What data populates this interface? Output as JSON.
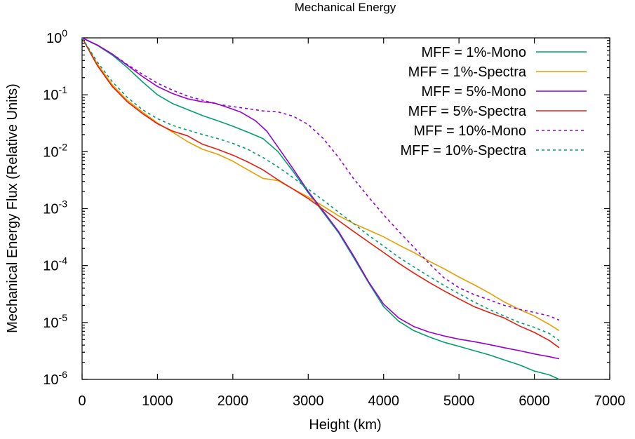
{
  "chart_data": {
    "type": "line",
    "title": "Mechanical Energy",
    "xlabel": "Height (km)",
    "ylabel": "Mechanical Energy Flux  (Relative Units)",
    "xlim": [
      0,
      7000
    ],
    "ylim": [
      1e-06,
      1
    ],
    "yscale": "log",
    "grid": false,
    "legend_position": "top-right",
    "x_ticks": [
      0,
      1000,
      2000,
      3000,
      4000,
      5000,
      6000,
      7000
    ],
    "x_tick_labels": [
      "0",
      "1000",
      "2000",
      "3000",
      "4000",
      "5000",
      "6000",
      "7000"
    ],
    "y_ticks": [
      {
        "value": 1,
        "base": "10",
        "exp": "0"
      },
      {
        "value": 0.1,
        "base": "10",
        "exp": "-1"
      },
      {
        "value": 0.01,
        "base": "10",
        "exp": "-2"
      },
      {
        "value": 0.001,
        "base": "10",
        "exp": "-3"
      },
      {
        "value": 0.0001,
        "base": "10",
        "exp": "-4"
      },
      {
        "value": 1e-05,
        "base": "10",
        "exp": "-5"
      },
      {
        "value": 1e-06,
        "base": "10",
        "exp": "-6"
      }
    ],
    "series": [
      {
        "name": "MFF = 1%-Mono",
        "color": "#009e73",
        "dash": "solid",
        "points": [
          [
            0,
            1.0
          ],
          [
            200,
            0.74
          ],
          [
            400,
            0.5
          ],
          [
            600,
            0.3
          ],
          [
            800,
            0.17
          ],
          [
            1000,
            0.1
          ],
          [
            1200,
            0.07
          ],
          [
            1400,
            0.055
          ],
          [
            1600,
            0.043
          ],
          [
            1800,
            0.035
          ],
          [
            2000,
            0.028
          ],
          [
            2200,
            0.022
          ],
          [
            2400,
            0.017
          ],
          [
            2600,
            0.01
          ],
          [
            2800,
            0.0045
          ],
          [
            3000,
            0.0019
          ],
          [
            3200,
            0.00085
          ],
          [
            3400,
            0.00038
          ],
          [
            3600,
            0.00014
          ],
          [
            3800,
            5e-05
          ],
          [
            4000,
            1.9e-05
          ],
          [
            4200,
            1.05e-05
          ],
          [
            4400,
            7.2e-06
          ],
          [
            4600,
            5.6e-06
          ],
          [
            4800,
            4.5e-06
          ],
          [
            5000,
            3.8e-06
          ],
          [
            5200,
            3.2e-06
          ],
          [
            5400,
            2.7e-06
          ],
          [
            5600,
            2.2e-06
          ],
          [
            5800,
            1.8e-06
          ],
          [
            6000,
            1.4e-06
          ],
          [
            6200,
            1.2e-06
          ],
          [
            6330,
            1e-06
          ]
        ]
      },
      {
        "name": "MFF = 1%-Spectra",
        "color": "#e69f00",
        "dash": "solid",
        "points": [
          [
            0,
            1.0
          ],
          [
            200,
            0.35
          ],
          [
            400,
            0.15
          ],
          [
            600,
            0.08
          ],
          [
            800,
            0.05
          ],
          [
            1000,
            0.032
          ],
          [
            1200,
            0.022
          ],
          [
            1400,
            0.015
          ],
          [
            1600,
            0.011
          ],
          [
            1800,
            0.009
          ],
          [
            2000,
            0.0068
          ],
          [
            2200,
            0.0048
          ],
          [
            2400,
            0.0034
          ],
          [
            2600,
            0.0031
          ],
          [
            2800,
            0.0022
          ],
          [
            3000,
            0.0016
          ],
          [
            3200,
            0.0011
          ],
          [
            3400,
            0.00075
          ],
          [
            3600,
            0.00055
          ],
          [
            3800,
            0.00042
          ],
          [
            4000,
            0.00032
          ],
          [
            4200,
            0.00023
          ],
          [
            4400,
            0.00017
          ],
          [
            4600,
            0.00012
          ],
          [
            4800,
            8.8e-05
          ],
          [
            5000,
            6.3e-05
          ],
          [
            5200,
            4.6e-05
          ],
          [
            5400,
            3.3e-05
          ],
          [
            5600,
            2.3e-05
          ],
          [
            5800,
            1.7e-05
          ],
          [
            6000,
            1.3e-05
          ],
          [
            6200,
            9.2e-06
          ],
          [
            6330,
            7.2e-06
          ]
        ]
      },
      {
        "name": "MFF = 5%-Mono",
        "color": "#9400d3",
        "dash": "solid",
        "points": [
          [
            0,
            1.0
          ],
          [
            200,
            0.75
          ],
          [
            400,
            0.52
          ],
          [
            600,
            0.33
          ],
          [
            800,
            0.21
          ],
          [
            1000,
            0.14
          ],
          [
            1200,
            0.105
          ],
          [
            1400,
            0.085
          ],
          [
            1600,
            0.075
          ],
          [
            1750,
            0.072
          ],
          [
            1900,
            0.062
          ],
          [
            2100,
            0.05
          ],
          [
            2300,
            0.035
          ],
          [
            2450,
            0.023
          ],
          [
            2600,
            0.012
          ],
          [
            2800,
            0.005
          ],
          [
            3000,
            0.002
          ],
          [
            3200,
            0.0009
          ],
          [
            3400,
            0.0004
          ],
          [
            3600,
            0.00015
          ],
          [
            3800,
            5.2e-05
          ],
          [
            4000,
            2.1e-05
          ],
          [
            4200,
            1.2e-05
          ],
          [
            4400,
            8.5e-06
          ],
          [
            4600,
            6.8e-06
          ],
          [
            4800,
            5.8e-06
          ],
          [
            5000,
            5.1e-06
          ],
          [
            5200,
            4.6e-06
          ],
          [
            5400,
            4.1e-06
          ],
          [
            5600,
            3.6e-06
          ],
          [
            5800,
            3.2e-06
          ],
          [
            6000,
            2.8e-06
          ],
          [
            6200,
            2.5e-06
          ],
          [
            6330,
            2.3e-06
          ]
        ]
      },
      {
        "name": "MFF = 5%-Spectra",
        "color": "#e51e10",
        "dash": "solid",
        "points": [
          [
            0,
            1.0
          ],
          [
            200,
            0.33
          ],
          [
            400,
            0.14
          ],
          [
            600,
            0.075
          ],
          [
            800,
            0.047
          ],
          [
            1000,
            0.031
          ],
          [
            1200,
            0.023
          ],
          [
            1400,
            0.019
          ],
          [
            1500,
            0.016
          ],
          [
            1600,
            0.0135
          ],
          [
            1800,
            0.011
          ],
          [
            2000,
            0.0087
          ],
          [
            2200,
            0.0066
          ],
          [
            2400,
            0.0048
          ],
          [
            2600,
            0.0032
          ],
          [
            2800,
            0.0022
          ],
          [
            3000,
            0.0015
          ],
          [
            3200,
            0.00097
          ],
          [
            3400,
            0.00062
          ],
          [
            3600,
            0.0004
          ],
          [
            3800,
            0.00026
          ],
          [
            4000,
            0.00017
          ],
          [
            4200,
            0.00011
          ],
          [
            4400,
            7.4e-05
          ],
          [
            4600,
            5.1e-05
          ],
          [
            4800,
            3.6e-05
          ],
          [
            5000,
            2.6e-05
          ],
          [
            5200,
            1.9e-05
          ],
          [
            5400,
            1.5e-05
          ],
          [
            5600,
            1.2e-05
          ],
          [
            5800,
            8.7e-06
          ],
          [
            6000,
            6.7e-06
          ],
          [
            6200,
            4.8e-06
          ],
          [
            6330,
            3.6e-06
          ]
        ]
      },
      {
        "name": "MFF = 10%-Mono",
        "color": "#9400d3",
        "dash": "dashed",
        "points": [
          [
            0,
            1.0
          ],
          [
            200,
            0.75
          ],
          [
            400,
            0.52
          ],
          [
            600,
            0.34
          ],
          [
            800,
            0.23
          ],
          [
            1000,
            0.16
          ],
          [
            1200,
            0.12
          ],
          [
            1400,
            0.095
          ],
          [
            1600,
            0.08
          ],
          [
            1800,
            0.068
          ],
          [
            2000,
            0.062
          ],
          [
            2200,
            0.057
          ],
          [
            2400,
            0.052
          ],
          [
            2600,
            0.05
          ],
          [
            2800,
            0.042
          ],
          [
            3000,
            0.03
          ],
          [
            3200,
            0.017
          ],
          [
            3400,
            0.008
          ],
          [
            3600,
            0.0034
          ],
          [
            3800,
            0.0016
          ],
          [
            4000,
            0.00078
          ],
          [
            4200,
            0.0004
          ],
          [
            4400,
            0.00021
          ],
          [
            4600,
            0.00011
          ],
          [
            4800,
            6.1e-05
          ],
          [
            5000,
            4.1e-05
          ],
          [
            5200,
            3.1e-05
          ],
          [
            5400,
            2.5e-05
          ],
          [
            5600,
            2e-05
          ],
          [
            5800,
            1.7e-05
          ],
          [
            6000,
            1.5e-05
          ],
          [
            6200,
            1.3e-05
          ],
          [
            6330,
            1.1e-05
          ]
        ]
      },
      {
        "name": "MFF = 10%-Spectra",
        "color": "#009e73",
        "dash": "dashed",
        "points": [
          [
            0,
            1.0
          ],
          [
            200,
            0.38
          ],
          [
            400,
            0.17
          ],
          [
            600,
            0.09
          ],
          [
            800,
            0.055
          ],
          [
            1000,
            0.038
          ],
          [
            1200,
            0.029
          ],
          [
            1400,
            0.024
          ],
          [
            1600,
            0.02
          ],
          [
            1800,
            0.017
          ],
          [
            2000,
            0.014
          ],
          [
            2200,
            0.011
          ],
          [
            2400,
            0.0079
          ],
          [
            2600,
            0.0054
          ],
          [
            2800,
            0.0035
          ],
          [
            3000,
            0.0022
          ],
          [
            3200,
            0.0014
          ],
          [
            3400,
            0.00087
          ],
          [
            3600,
            0.00055
          ],
          [
            3800,
            0.00034
          ],
          [
            4000,
            0.00022
          ],
          [
            4200,
            0.00014
          ],
          [
            4400,
            9.5e-05
          ],
          [
            4600,
            6.5e-05
          ],
          [
            4800,
            4.5e-05
          ],
          [
            5000,
            3.2e-05
          ],
          [
            5200,
            2.3e-05
          ],
          [
            5400,
            1.7e-05
          ],
          [
            5600,
            1.3e-05
          ],
          [
            5800,
            1e-05
          ],
          [
            6000,
            8.2e-06
          ],
          [
            6200,
            6.4e-06
          ],
          [
            6330,
            4.8e-06
          ]
        ]
      }
    ]
  }
}
